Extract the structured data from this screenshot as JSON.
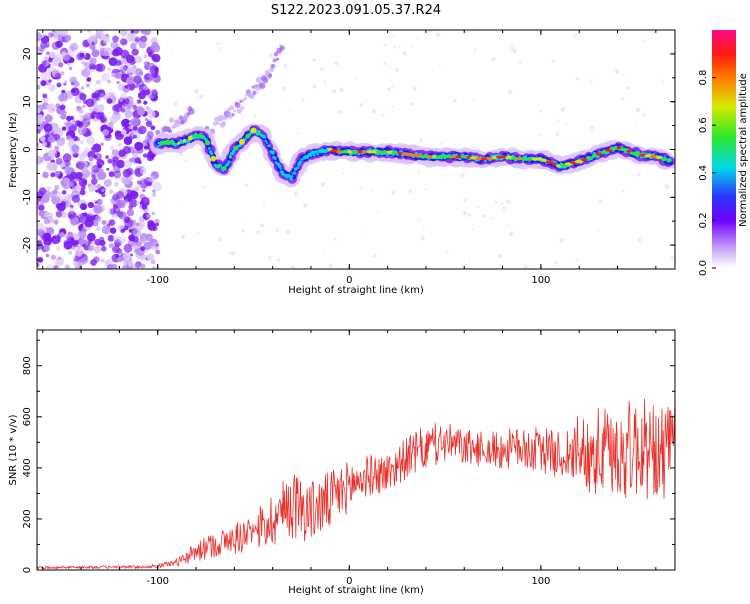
{
  "title": "S122.2023.091.05.37.R24",
  "chart_data": [
    {
      "type": "heatmap",
      "xlabel": "Height of straight line (km)",
      "ylabel": "Frequency (Hz)",
      "xlim": [
        -163,
        170
      ],
      "ylim": [
        -25,
        25
      ],
      "x_ticks": [
        -100,
        0,
        100
      ],
      "y_ticks": [
        -20,
        -10,
        0,
        10,
        20
      ],
      "colorbar": {
        "label": "Normalized spectral amplitude",
        "ticks": [
          0.0,
          0.2,
          0.4,
          0.6,
          0.8
        ],
        "range": [
          0,
          1
        ]
      },
      "ridge": {
        "x": [
          -100,
          -95,
          -90,
          -85,
          -80,
          -75,
          -70,
          -65,
          -60,
          -55,
          -50,
          -45,
          -40,
          -35,
          -30,
          -25,
          -20,
          -15,
          -10,
          -5,
          0,
          10,
          20,
          30,
          40,
          50,
          60,
          70,
          80,
          90,
          100,
          110,
          120,
          130,
          140,
          150,
          160,
          168
        ],
        "y": [
          1,
          1.5,
          1.2,
          2,
          3,
          2.5,
          -3,
          -4,
          0,
          2,
          4,
          3,
          -1,
          -5,
          -6,
          -2,
          -1,
          -0.5,
          0,
          -0.5,
          -0.5,
          -0.5,
          -0.5,
          -1,
          -1.5,
          -1.5,
          -1.5,
          -2,
          -1.5,
          -2,
          -2,
          -3.5,
          -2.5,
          -1,
          0.5,
          -1,
          -1.5,
          -2.5
        ]
      },
      "side_branches": [
        {
          "x": [
            -75,
            -70,
            -60,
            -50,
            -40,
            -35
          ],
          "y": [
            3,
            5,
            8,
            12,
            17,
            22
          ]
        },
        {
          "x": [
            -100,
            -90,
            -82
          ],
          "y": [
            3,
            6,
            8
          ]
        }
      ]
    },
    {
      "type": "line",
      "xlabel": "Height of straight line (km)",
      "ylabel": "SNR (10 * v/v)",
      "xlim": [
        -163,
        170
      ],
      "ylim": [
        0,
        940
      ],
      "x_ticks": [
        -100,
        0,
        100
      ],
      "y_ticks": [
        0,
        200,
        400,
        600,
        800
      ],
      "color": "#e8302a",
      "envelope": {
        "x": [
          -163,
          -110,
          -100,
          -90,
          -80,
          -70,
          -60,
          -50,
          -40,
          -30,
          -20,
          -10,
          0,
          10,
          20,
          30,
          40,
          50,
          60,
          70,
          80,
          90,
          100,
          110,
          120,
          130,
          140,
          150,
          160,
          170
        ],
        "mean": [
          10,
          12,
          15,
          30,
          70,
          100,
          120,
          150,
          200,
          260,
          230,
          270,
          330,
          370,
          380,
          440,
          480,
          500,
          480,
          470,
          470,
          480,
          470,
          450,
          470,
          460,
          460,
          480,
          460,
          470
        ],
        "spread": [
          5,
          6,
          8,
          15,
          40,
          50,
          60,
          80,
          110,
          140,
          120,
          120,
          100,
          80,
          80,
          80,
          90,
          80,
          70,
          70,
          80,
          80,
          90,
          90,
          140,
          180,
          190,
          200,
          200,
          180
        ]
      }
    }
  ]
}
